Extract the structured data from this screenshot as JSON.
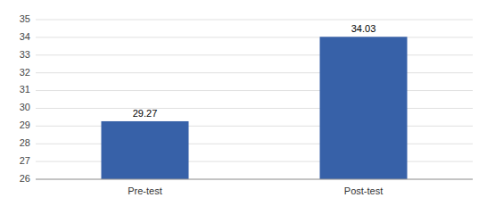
{
  "chart_data": {
    "type": "bar",
    "categories": [
      "Pre-test",
      "Post-test"
    ],
    "values": [
      29.27,
      34.03
    ],
    "color": "#3761A8",
    "ylim": [
      26,
      35
    ],
    "yticks": [
      26,
      27,
      28,
      29,
      30,
      31,
      32,
      33,
      34,
      35
    ],
    "grid": true,
    "data_labels": true
  }
}
